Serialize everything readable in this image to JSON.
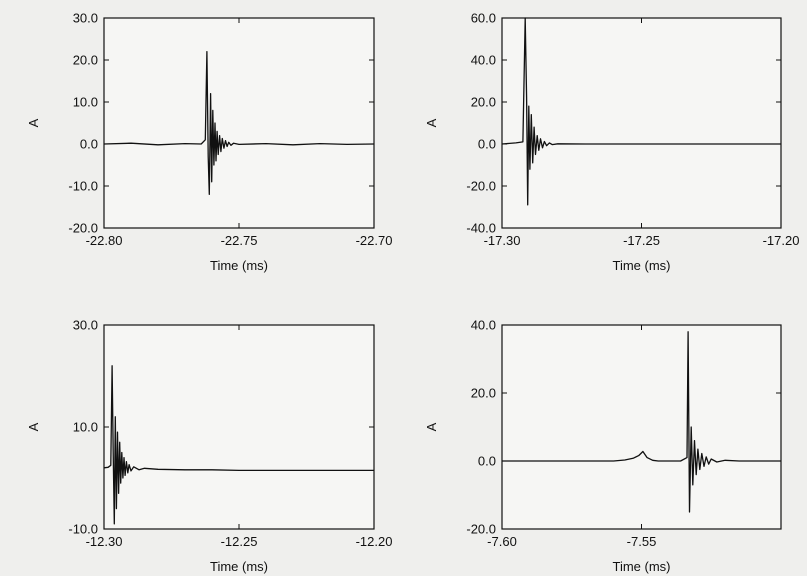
{
  "chart_data": [
    {
      "type": "line",
      "xlabel": "Time (ms)",
      "ylabel": "A",
      "xlim": [
        -22.8,
        -22.7
      ],
      "ylim": [
        -20.0,
        30.0
      ],
      "x_ticks": [
        "-22.80",
        "-22.75",
        "-22.70"
      ],
      "y_ticks": [
        "30.0",
        "20.0",
        "10.0",
        "0.0",
        "-10.0",
        "-20.0"
      ],
      "grid": false,
      "series": [
        {
          "x": [
            -22.8,
            -22.79,
            -22.78,
            -22.77,
            -22.764,
            -22.7625,
            -22.7619,
            -22.7614,
            -22.761,
            -22.7605,
            -22.7601,
            -22.7597,
            -22.7593,
            -22.7589,
            -22.7585,
            -22.7581,
            -22.7577,
            -22.7572,
            -22.7567,
            -22.7562,
            -22.7556,
            -22.755,
            -22.7544,
            -22.7538,
            -22.753,
            -22.752,
            -22.75,
            -22.74,
            -22.73,
            -22.72,
            -22.71,
            -22.7
          ],
          "y": [
            0.0,
            0.2,
            -0.2,
            0.1,
            0.0,
            1.0,
            22.0,
            -3.0,
            -12.0,
            12.0,
            -9.0,
            8.0,
            -5.0,
            5.0,
            -4.0,
            3.0,
            -2.5,
            2.0,
            -1.8,
            1.3,
            -1.0,
            0.8,
            -0.6,
            0.4,
            -0.3,
            0.2,
            -0.1,
            0.1,
            -0.2,
            0.1,
            -0.1,
            0.0
          ]
        }
      ]
    },
    {
      "type": "line",
      "xlabel": "Time (ms)",
      "ylabel": "A",
      "xlim": [
        -17.3,
        -17.2
      ],
      "ylim": [
        -40.0,
        60.0
      ],
      "x_ticks": [
        "-17.30",
        "-17.25",
        "-17.20"
      ],
      "y_ticks": [
        "60.0",
        "40.0",
        "20.0",
        "0.0",
        "-20.0",
        "-40.0"
      ],
      "grid": false,
      "series": [
        {
          "x": [
            -17.3,
            -17.295,
            -17.2925,
            -17.2917,
            -17.2912,
            -17.2908,
            -17.2904,
            -17.29,
            -17.2895,
            -17.289,
            -17.2885,
            -17.288,
            -17.2874,
            -17.2868,
            -17.2862,
            -17.2855,
            -17.2848,
            -17.284,
            -17.283,
            -17.282,
            -17.28,
            -17.27,
            -17.26,
            -17.25,
            -17.24,
            -17.23,
            -17.22,
            -17.21,
            -17.2
          ],
          "y": [
            0.0,
            0.5,
            1.0,
            60.0,
            22.0,
            -29.0,
            18.0,
            -12.0,
            14.0,
            -9.0,
            8.0,
            -5.0,
            4.0,
            -3.0,
            2.5,
            -1.8,
            1.2,
            -0.8,
            0.5,
            -0.3,
            0.1,
            0.0,
            0.0,
            0.0,
            0.0,
            0.0,
            0.0,
            0.0,
            0.0
          ]
        }
      ]
    },
    {
      "type": "line",
      "xlabel": "Time (ms)",
      "ylabel": "A",
      "xlim": [
        -12.3,
        -12.2
      ],
      "ylim": [
        -10.0,
        30.0
      ],
      "x_ticks": [
        "-12.30",
        "-12.25",
        "-12.20"
      ],
      "y_ticks": [
        "30.0",
        "10.0",
        "-10.0"
      ],
      "grid": false,
      "series": [
        {
          "x": [
            -12.3,
            -12.2985,
            -12.2975,
            -12.297,
            -12.2966,
            -12.2962,
            -12.2958,
            -12.2954,
            -12.295,
            -12.2946,
            -12.2942,
            -12.2938,
            -12.2934,
            -12.293,
            -12.2926,
            -12.2922,
            -12.2917,
            -12.2912,
            -12.2907,
            -12.29,
            -12.289,
            -12.287,
            -12.285,
            -12.28,
            -12.27,
            -12.26,
            -12.25,
            -12.24,
            -12.23,
            -12.22,
            -12.21,
            -12.2
          ],
          "y": [
            2.0,
            2.1,
            2.5,
            22.0,
            5.0,
            -9.0,
            12.0,
            -6.0,
            9.0,
            -3.0,
            7.0,
            -1.0,
            5.0,
            0.0,
            4.0,
            0.5,
            3.2,
            1.0,
            2.6,
            1.4,
            2.2,
            1.6,
            1.9,
            1.7,
            1.6,
            1.6,
            1.5,
            1.5,
            1.5,
            1.5,
            1.5,
            1.5
          ]
        }
      ]
    },
    {
      "type": "line",
      "xlabel": "Time (ms)",
      "ylabel": "A",
      "xlim": [
        -7.6,
        -7.5
      ],
      "ylim": [
        -20.0,
        40.0
      ],
      "x_ticks": [
        "-7.60",
        "-7.55"
      ],
      "y_ticks": [
        "40.0",
        "20.0",
        "0.0",
        "-20.0"
      ],
      "grid": false,
      "series": [
        {
          "x": [
            -7.6,
            -7.59,
            -7.58,
            -7.57,
            -7.56,
            -7.556,
            -7.553,
            -7.551,
            -7.5495,
            -7.548,
            -7.546,
            -7.544,
            -7.54,
            -7.536,
            -7.5337,
            -7.5333,
            -7.5328,
            -7.5322,
            -7.5316,
            -7.531,
            -7.5304,
            -7.5298,
            -7.5291,
            -7.5284,
            -7.5276,
            -7.5268,
            -7.5259,
            -7.525,
            -7.523,
            -7.52,
            -7.515,
            -7.51,
            -7.505,
            -7.5
          ],
          "y": [
            0.0,
            0.0,
            0.0,
            0.0,
            0.0,
            0.3,
            0.8,
            1.6,
            2.8,
            1.0,
            0.2,
            0.0,
            0.0,
            0.0,
            1.0,
            38.0,
            -15.0,
            10.0,
            -7.0,
            6.0,
            -4.0,
            3.5,
            -2.5,
            2.2,
            -1.6,
            1.2,
            -0.9,
            0.6,
            -0.3,
            0.2,
            0.0,
            0.0,
            0.0,
            0.0
          ]
        }
      ]
    }
  ]
}
